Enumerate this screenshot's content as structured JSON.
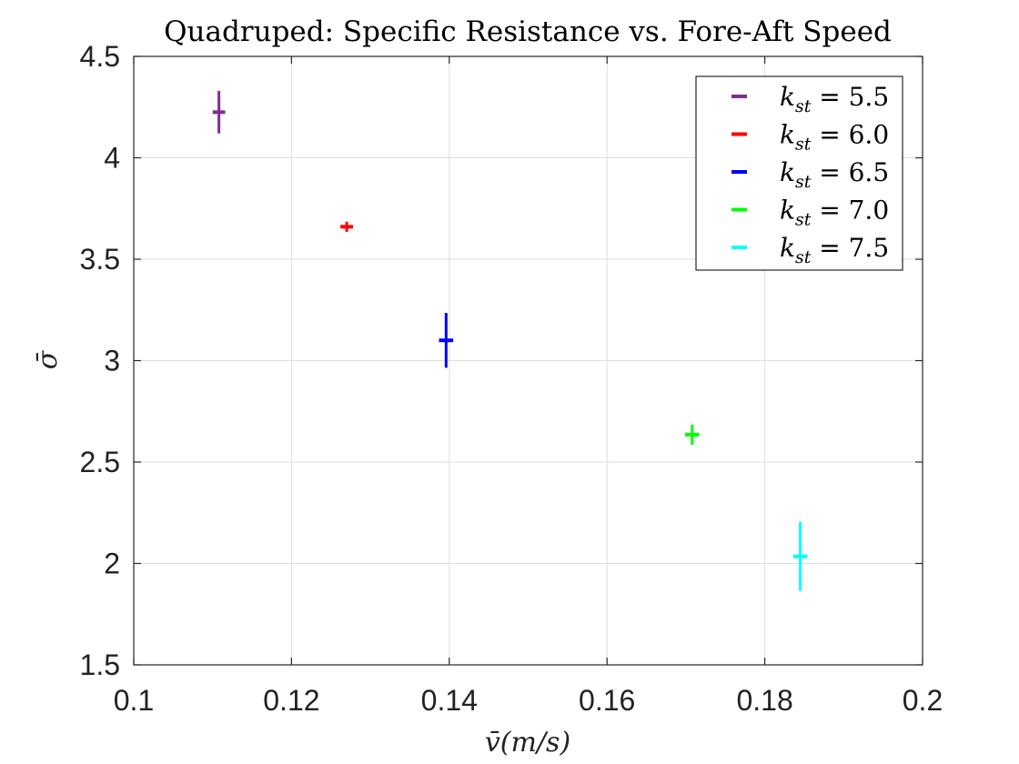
{
  "chart_data": {
    "type": "scatter",
    "title": "Quadruped: Specific Resistance vs. Fore-Aft Speed",
    "xlabel": "v̄(m/s)",
    "ylabel": "σ̄",
    "xlim": [
      0.1,
      0.2
    ],
    "ylim": [
      1.5,
      4.5
    ],
    "xticks": [
      0.1,
      0.12,
      0.14,
      0.16,
      0.18,
      0.2
    ],
    "yticks": [
      1.5,
      2,
      2.5,
      3,
      3.5,
      4,
      4.5
    ],
    "xtick_labels": [
      "0.1",
      "0.12",
      "0.14",
      "0.16",
      "0.18",
      "0.2"
    ],
    "ytick_labels": [
      "1.5",
      "2",
      "2.5",
      "3",
      "3.5",
      "4",
      "4.5"
    ],
    "grid": true,
    "legend_position": "top-right",
    "series": [
      {
        "name": "k_st = 5.5",
        "symbol": "k",
        "subscript": "st",
        "equation": " = 5.5",
        "color": "#7E2F8E",
        "x": 0.1108,
        "y": 4.225,
        "xerr": 0.0008,
        "yerr": 0.105
      },
      {
        "name": "k_st = 6.0",
        "symbol": "k",
        "subscript": "st",
        "equation": " = 6.0",
        "color": "#FF0000",
        "x": 0.127,
        "y": 3.66,
        "xerr": 0.0008,
        "yerr": 0.025
      },
      {
        "name": "k_st = 6.5",
        "symbol": "k",
        "subscript": "st",
        "equation": " = 6.5",
        "color": "#0000FF",
        "x": 0.1396,
        "y": 3.1,
        "xerr": 0.0009,
        "yerr": 0.135
      },
      {
        "name": "k_st = 7.0",
        "symbol": "k",
        "subscript": "st",
        "equation": " = 7.0",
        "color": "#00FF00",
        "x": 0.1708,
        "y": 2.635,
        "xerr": 0.0009,
        "yerr": 0.05
      },
      {
        "name": "k_st = 7.5",
        "symbol": "k",
        "subscript": "st",
        "equation": " = 7.5",
        "color": "#00FFFF",
        "x": 0.1845,
        "y": 2.035,
        "xerr": 0.0009,
        "yerr": 0.17
      }
    ]
  }
}
